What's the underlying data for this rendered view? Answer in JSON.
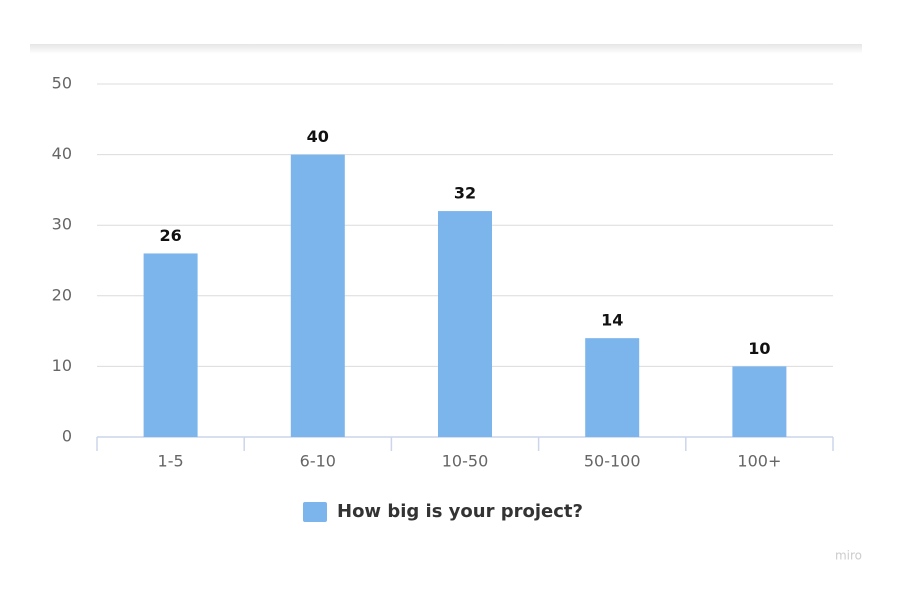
{
  "chart_data": {
    "type": "bar",
    "categories": [
      "1-5",
      "6-10",
      "10-50",
      "50-100",
      "100+"
    ],
    "series": [
      {
        "name": "How big is your project?",
        "color": "#7cb5ec",
        "values": [
          26,
          40,
          32,
          14,
          10
        ]
      }
    ],
    "ylim": [
      0,
      50
    ],
    "yticks": [
      0,
      10,
      20,
      30,
      40,
      50
    ],
    "grid": true,
    "legend": "bottom",
    "watermark": "miro"
  }
}
